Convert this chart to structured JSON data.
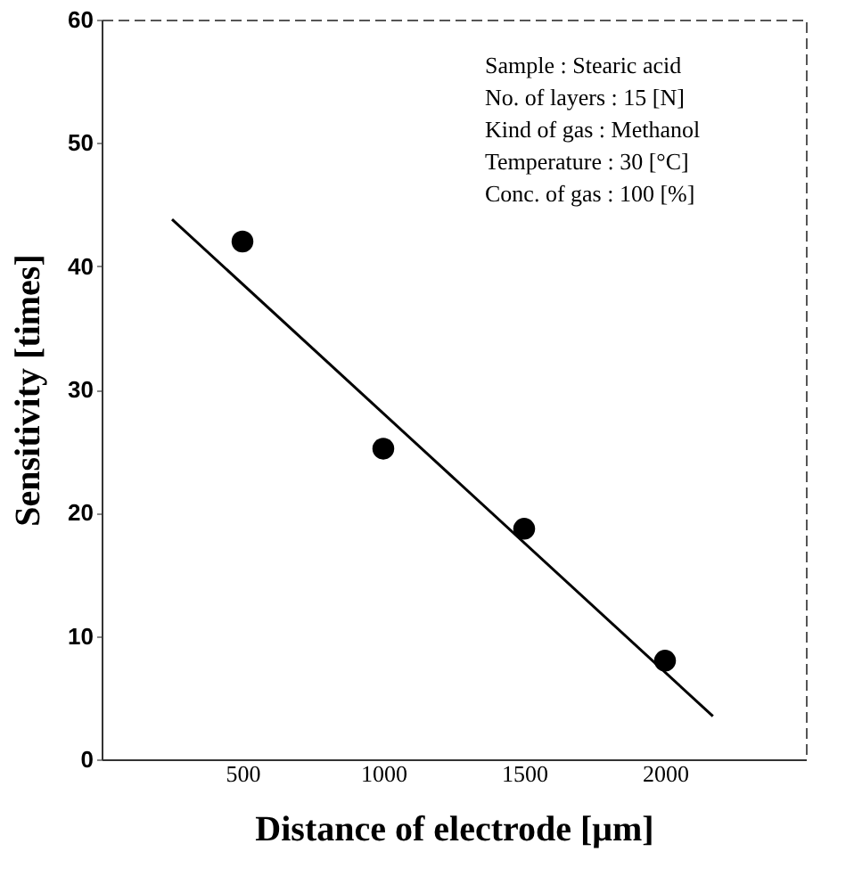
{
  "chart_data": {
    "type": "scatter",
    "xlabel": "Distance of electrode [μm]",
    "ylabel": "Sensitivity [times]",
    "x": [
      500,
      1000,
      1500,
      2000
    ],
    "series": [
      {
        "type": "scatter",
        "color": "#000000",
        "values": [
          42,
          25.2,
          18.7,
          8
        ],
        "marker": "circle"
      },
      {
        "type": "line",
        "color": "#000000",
        "x": [
          250,
          2170
        ],
        "values": [
          43.8,
          3.5
        ],
        "line_style": "solid"
      }
    ],
    "xlim": [
      0,
      2500
    ],
    "xticks": [
      500,
      1000,
      1500,
      2000
    ],
    "ylim": [
      0,
      60
    ],
    "yticks": [
      0,
      10,
      20,
      30,
      40,
      50,
      60
    ],
    "grid": false,
    "annotations": [
      "Sample : Stearic acid",
      "No. of layers : 15 [N]",
      "Kind of gas : Methanol",
      "Temperature : 30 [°C]",
      "Conc. of gas : 100 [%]"
    ]
  }
}
